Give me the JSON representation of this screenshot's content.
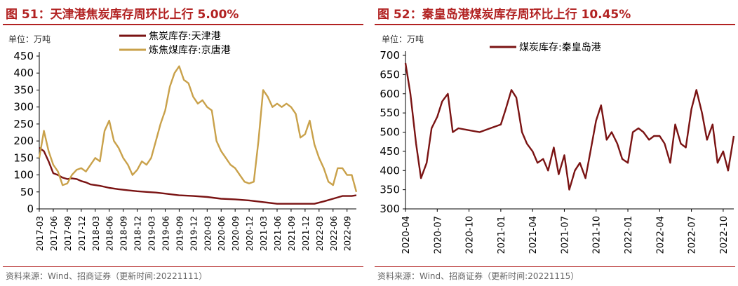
{
  "left": {
    "title": "图 51：天津港焦炭库存周环比上行 5.00%",
    "source": "资料来源：Wind、招商证券（更新时间:20221111）"
  },
  "right": {
    "title": "图 52：秦皇岛港煤炭库存周环比上行 10.45%",
    "source": "资料来源：Wind、招商证券（更新时间:20221115）"
  },
  "colors": {
    "title_red": "#b22222",
    "series_dark": "#7a1313",
    "series_gold": "#c9a14a"
  },
  "chart_data": [
    {
      "type": "line",
      "unit_label": "单位：万吨",
      "ylim": [
        0,
        450
      ],
      "yticks": [
        0,
        50,
        100,
        150,
        200,
        250,
        300,
        350,
        400,
        450
      ],
      "xlim": [
        "2017-03",
        "2022-11"
      ],
      "xticks": [
        "2017-03",
        "2017-06",
        "2017-09",
        "2017-12",
        "2018-03",
        "2018-06",
        "2018-09",
        "2018-12",
        "2019-03",
        "2019-06",
        "2019-09",
        "2019-12",
        "2020-03",
        "2020-06",
        "2020-09",
        "2020-12",
        "2021-03",
        "2021-06",
        "2021-09",
        "2021-12",
        "2022-03",
        "2022-06",
        "2022-09"
      ],
      "legend_position": "top",
      "grid": false,
      "series": [
        {
          "name": "焦炭库存:天津港",
          "color": "#7a1313",
          "x": [
            "2017-03",
            "2017-04",
            "2017-05",
            "2017-06",
            "2017-07",
            "2017-08",
            "2017-09",
            "2017-10",
            "2017-11",
            "2017-12",
            "2018-01",
            "2018-02",
            "2018-03",
            "2018-04",
            "2018-05",
            "2018-06",
            "2018-08",
            "2018-10",
            "2018-12",
            "2019-02",
            "2019-04",
            "2019-06",
            "2019-09",
            "2019-12",
            "2020-03",
            "2020-06",
            "2020-09",
            "2020-12",
            "2021-03",
            "2021-06",
            "2021-09",
            "2021-12",
            "2022-02",
            "2022-04",
            "2022-06",
            "2022-08",
            "2022-10",
            "2022-11"
          ],
          "values": [
            180,
            170,
            140,
            105,
            100,
            92,
            88,
            90,
            88,
            82,
            78,
            72,
            70,
            68,
            65,
            62,
            58,
            55,
            52,
            50,
            48,
            45,
            40,
            38,
            35,
            30,
            28,
            25,
            20,
            15,
            15,
            15,
            15,
            22,
            30,
            38,
            38,
            40
          ]
        },
        {
          "name": "炼焦煤库存:京唐港",
          "color": "#c9a14a",
          "x": [
            "2017-03",
            "2017-04",
            "2017-05",
            "2017-06",
            "2017-07",
            "2017-08",
            "2017-09",
            "2017-10",
            "2017-11",
            "2017-12",
            "2018-01",
            "2018-02",
            "2018-03",
            "2018-04",
            "2018-05",
            "2018-06",
            "2018-07",
            "2018-08",
            "2018-09",
            "2018-10",
            "2018-11",
            "2018-12",
            "2019-01",
            "2019-02",
            "2019-03",
            "2019-04",
            "2019-05",
            "2019-06",
            "2019-07",
            "2019-08",
            "2019-09",
            "2019-10",
            "2019-11",
            "2019-12",
            "2020-01",
            "2020-02",
            "2020-03",
            "2020-04",
            "2020-05",
            "2020-06",
            "2020-07",
            "2020-08",
            "2020-09",
            "2020-10",
            "2020-11",
            "2020-12",
            "2021-01",
            "2021-02",
            "2021-03",
            "2021-04",
            "2021-05",
            "2021-06",
            "2021-07",
            "2021-08",
            "2021-09",
            "2021-10",
            "2021-11",
            "2021-12",
            "2022-01",
            "2022-02",
            "2022-03",
            "2022-04",
            "2022-05",
            "2022-06",
            "2022-07",
            "2022-08",
            "2022-09",
            "2022-10",
            "2022-11"
          ],
          "values": [
            150,
            230,
            170,
            130,
            110,
            70,
            75,
            100,
            115,
            120,
            110,
            130,
            150,
            140,
            230,
            260,
            200,
            180,
            150,
            130,
            100,
            115,
            140,
            130,
            150,
            200,
            250,
            290,
            360,
            400,
            420,
            380,
            370,
            330,
            310,
            320,
            300,
            290,
            200,
            170,
            150,
            130,
            120,
            100,
            80,
            75,
            80,
            200,
            350,
            330,
            300,
            310,
            300,
            310,
            300,
            280,
            210,
            220,
            260,
            190,
            150,
            120,
            80,
            70,
            120,
            120,
            100,
            100,
            50
          ]
        }
      ]
    },
    {
      "type": "line",
      "unit_label": "单位：万吨",
      "ylim": [
        300,
        700
      ],
      "yticks": [
        300,
        350,
        400,
        450,
        500,
        550,
        600,
        650,
        700
      ],
      "xlim": [
        "2020-04",
        "2022-11"
      ],
      "xticks": [
        "2020-04",
        "2020-07",
        "2020-10",
        "2021-01",
        "2021-04",
        "2021-07",
        "2021-10",
        "2022-01",
        "2022-04",
        "2022-07",
        "2022-10"
      ],
      "legend_position": "top",
      "grid": false,
      "series": [
        {
          "name": "煤炭库存:秦皇岛港",
          "color": "#7a1313",
          "x": [
            "2020-04",
            "2020-04-15",
            "2020-05",
            "2020-05-15",
            "2020-06",
            "2020-06-15",
            "2020-07",
            "2020-07-15",
            "2020-08",
            "2020-08-15",
            "2020-09",
            "2020-10",
            "2020-11",
            "2020-12",
            "2021-01",
            "2021-01-15",
            "2021-02",
            "2021-02-15",
            "2021-03",
            "2021-03-15",
            "2021-04",
            "2021-04-15",
            "2021-05",
            "2021-05-15",
            "2021-06",
            "2021-06-15",
            "2021-07",
            "2021-07-15",
            "2021-08",
            "2021-08-15",
            "2021-09",
            "2021-09-15",
            "2021-10",
            "2021-10-15",
            "2021-11",
            "2021-11-15",
            "2021-12",
            "2021-12-15",
            "2022-01",
            "2022-01-15",
            "2022-02",
            "2022-02-15",
            "2022-03",
            "2022-03-15",
            "2022-04",
            "2022-04-15",
            "2022-05",
            "2022-05-15",
            "2022-06",
            "2022-06-15",
            "2022-07",
            "2022-07-15",
            "2022-08",
            "2022-08-15",
            "2022-09",
            "2022-09-15",
            "2022-10",
            "2022-10-15",
            "2022-11"
          ],
          "values": [
            680,
            600,
            470,
            380,
            420,
            510,
            540,
            580,
            600,
            500,
            510,
            505,
            500,
            510,
            520,
            560,
            610,
            590,
            500,
            470,
            450,
            420,
            430,
            400,
            460,
            390,
            440,
            350,
            400,
            420,
            380,
            450,
            530,
            570,
            480,
            500,
            470,
            430,
            420,
            500,
            510,
            500,
            480,
            490,
            490,
            470,
            420,
            520,
            470,
            460,
            560,
            610,
            550,
            480,
            520,
            420,
            450,
            400,
            490
          ]
        }
      ]
    }
  ]
}
